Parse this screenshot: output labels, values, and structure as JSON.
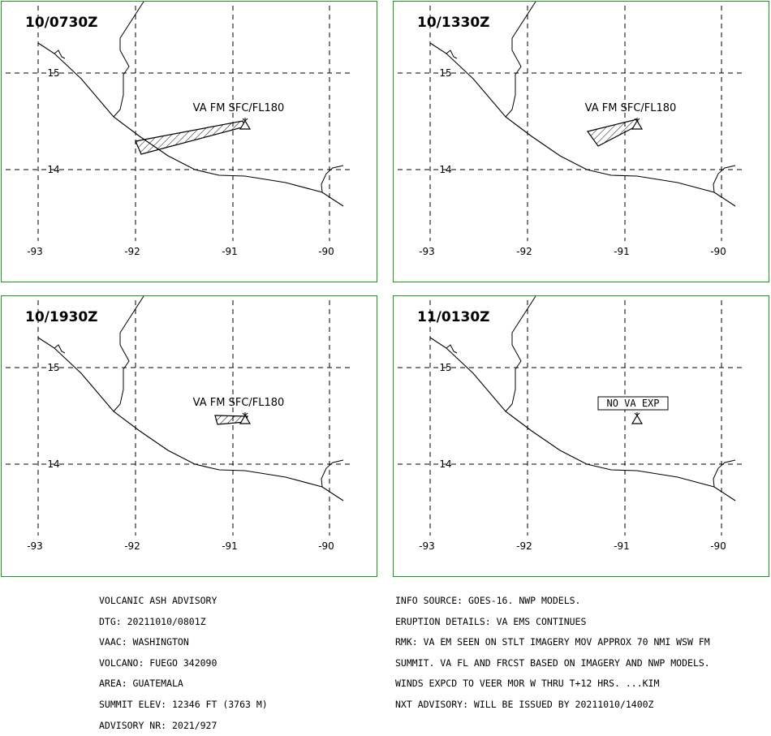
{
  "panels": [
    {
      "time": "10/0730Z",
      "label": "VA FM SFC/FL180",
      "plume": "large",
      "label_kind": "plain"
    },
    {
      "time": "10/1330Z",
      "label": "VA FM SFC/FL180",
      "plume": "medium",
      "label_kind": "plain"
    },
    {
      "time": "10/1930Z",
      "label": "VA FM SFC/FL180",
      "plume": "small",
      "label_kind": "plain"
    },
    {
      "time": "11/0130Z",
      "label": "NO VA EXP",
      "plume": "none",
      "label_kind": "boxed"
    }
  ],
  "axis": {
    "lon_ticks": [
      "-93",
      "-92",
      "-91",
      "-90"
    ],
    "lat_ticks": [
      "15",
      "14"
    ]
  },
  "advisory_left": [
    "VOLCANIC ASH ADVISORY",
    "DTG: 20211010/0801Z",
    "VAAC: WASHINGTON",
    "VOLCANO: FUEGO 342090",
    "AREA: GUATEMALA",
    "SUMMIT ELEV: 12346 FT (3763 M)",
    "ADVISORY NR: 2021/927"
  ],
  "advisory_right": [
    "INFO SOURCE: GOES-16. NWP MODELS.",
    "ERUPTION DETAILS: VA EMS CONTINUES",
    "RMK: VA EM SEEN ON STLT IMAGERY MOV APPROX 70 NMI WSW FM",
    "SUMMIT. VA FL AND FRCST BASED ON IMAGERY AND NWP MODELS.",
    "WINDS EXPCD TO VEER MOR W THRU T+12 HRS. ...KIM",
    "NXT ADVISORY: WILL BE ISSUED BY 20211010/1400Z"
  ],
  "colors": {
    "border": "#1a9a1a",
    "line": "#000000"
  }
}
